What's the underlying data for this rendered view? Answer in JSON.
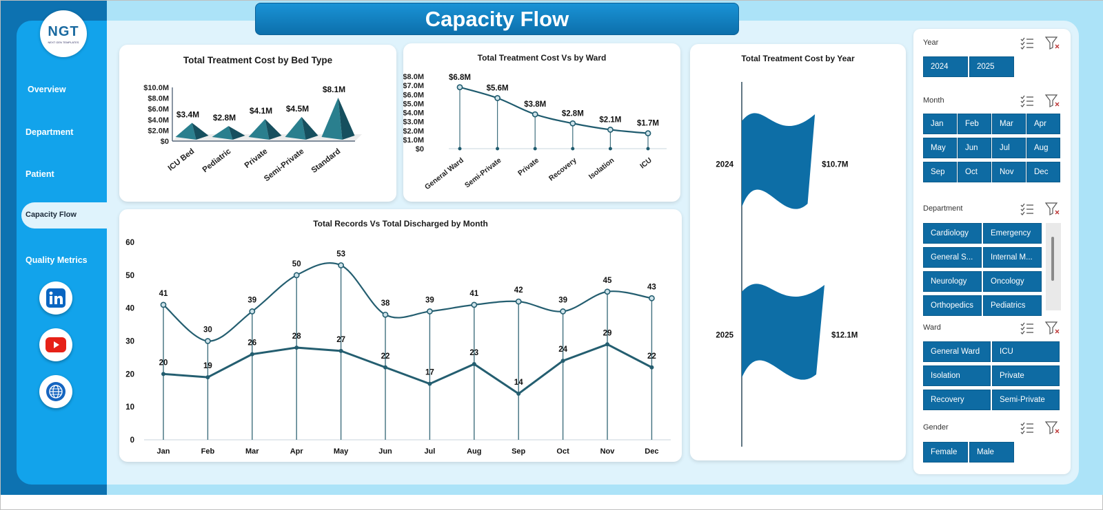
{
  "title": "Capacity Flow",
  "logo": {
    "text": "NGT",
    "subtext": "NEXT GEN TEMPLATES"
  },
  "nav": {
    "overview": "Overview",
    "department": "Department",
    "patient": "Patient",
    "capacity_flow": "Capacity  Flow",
    "quality_metrics": "Quality Metrics"
  },
  "social_icons": [
    "linkedin-icon",
    "youtube-icon",
    "globe-icon"
  ],
  "colors": {
    "primary": "#0e6ba3",
    "sidebar": "#12a3eb",
    "line_dark": "#1f5b6e",
    "accent": "#1a93d6"
  },
  "charts": {
    "bed_type": {
      "title": "Total Treatment Cost by Bed Type",
      "type": "bar",
      "categories": [
        "ICU Bed",
        "Pediatric",
        "Private",
        "Semi-Private",
        "Standard"
      ],
      "values": [
        3.4,
        2.8,
        4.1,
        4.5,
        8.1
      ],
      "labels": [
        "$3.4M",
        "$2.8M",
        "$4.1M",
        "$4.5M",
        "$8.1M"
      ],
      "y_ticks": [
        "$0",
        "$2.0M",
        "$4.0M",
        "$6.0M",
        "$8.0M",
        "$10.0M"
      ],
      "ylim": [
        0,
        10
      ]
    },
    "ward": {
      "title": "Total Treatment Cost Vs  by Ward",
      "type": "line",
      "categories": [
        "General Ward",
        "Semi-Private",
        "Private",
        "Recovery",
        "Isolation",
        "ICU"
      ],
      "values": [
        6.8,
        5.6,
        3.8,
        2.8,
        2.1,
        1.7
      ],
      "labels": [
        "$6.8M",
        "$5.6M",
        "$3.8M",
        "$2.8M",
        "$2.1M",
        "$1.7M"
      ],
      "y_ticks": [
        "$0",
        "$1.0M",
        "$2.0M",
        "$3.0M",
        "$4.0M",
        "$5.0M",
        "$6.0M",
        "$7.0M",
        "$8.0M"
      ],
      "ylim": [
        0,
        8
      ]
    },
    "year": {
      "title": "Total Treatment Cost by Year",
      "type": "bar",
      "categories": [
        "2024",
        "2025"
      ],
      "values": [
        10.7,
        12.1
      ],
      "labels": [
        "$10.7M",
        "$12.1M"
      ]
    },
    "monthly": {
      "title": "Total Records Vs Total Discharged by Month",
      "type": "line",
      "categories": [
        "Jan",
        "Feb",
        "Mar",
        "Apr",
        "May",
        "Jun",
        "Jul",
        "Aug",
        "Sep",
        "Oct",
        "Nov",
        "Dec"
      ],
      "series": [
        {
          "values": [
            41,
            30,
            39,
            50,
            53,
            38,
            39,
            41,
            42,
            39,
            45,
            43
          ]
        },
        {
          "values": [
            20,
            19,
            26,
            28,
            27,
            22,
            17,
            23,
            14,
            24,
            29,
            22
          ]
        }
      ],
      "y_ticks": [
        "0",
        "10",
        "20",
        "30",
        "40",
        "50",
        "60"
      ],
      "ylim": [
        0,
        60
      ]
    }
  },
  "slicers": {
    "year": {
      "label": "Year",
      "options": [
        "2024",
        "2025"
      ]
    },
    "month": {
      "label": "Month",
      "options": [
        "Jan",
        "Feb",
        "Mar",
        "Apr",
        "May",
        "Jun",
        "Jul",
        "Aug",
        "Sep",
        "Oct",
        "Nov",
        "Dec"
      ]
    },
    "department": {
      "label": "Department",
      "options": [
        "Cardiology",
        "Emergency",
        "General S...",
        "Internal M...",
        "Neurology",
        "Oncology",
        "Orthopedics",
        "Pediatrics"
      ]
    },
    "ward": {
      "label": "Ward",
      "options": [
        "General Ward",
        "ICU",
        "Isolation",
        "Private",
        "Recovery",
        "Semi-Private"
      ]
    },
    "gender": {
      "label": "Gender",
      "options": [
        "Female",
        "Male"
      ]
    }
  }
}
